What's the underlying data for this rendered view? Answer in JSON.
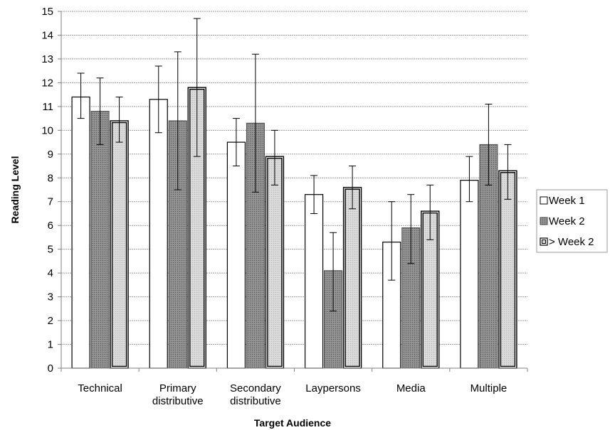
{
  "chart_data": {
    "type": "bar",
    "title": "",
    "xlabel": "Target Audience",
    "ylabel": "Reading Level",
    "ylim": [
      0,
      15
    ],
    "yticks": [
      0,
      1,
      2,
      3,
      4,
      5,
      6,
      7,
      8,
      9,
      10,
      11,
      12,
      13,
      14,
      15
    ],
    "grid": "horizontal dashed",
    "legend_position": "right",
    "categories": [
      [
        "Technical"
      ],
      [
        "Primary",
        "distributive"
      ],
      [
        "Secondary",
        "distributive"
      ],
      [
        "Laypersons"
      ],
      [
        "Media"
      ],
      [
        "Multiple"
      ]
    ],
    "series": [
      {
        "name": "Week 1",
        "fill": "#ffffff",
        "style": "plain",
        "values": [
          11.4,
          11.3,
          9.5,
          7.3,
          5.3,
          7.9
        ],
        "err_low": [
          10.5,
          9.9,
          8.5,
          6.5,
          3.7,
          7.0
        ],
        "err_high": [
          12.4,
          12.7,
          10.5,
          8.1,
          7.0,
          8.9
        ]
      },
      {
        "name": "Week 2",
        "fill": "#8c8c8c",
        "style": "dotted",
        "values": [
          10.8,
          10.4,
          10.3,
          4.1,
          5.9,
          9.4
        ],
        "err_low": [
          9.4,
          7.5,
          7.4,
          2.4,
          4.4,
          7.7
        ],
        "err_high": [
          12.2,
          13.3,
          13.2,
          5.7,
          7.3,
          11.1
        ]
      },
      {
        "name": "> Week 2",
        "fill": "#d4d4d4",
        "style": "double-border",
        "values": [
          10.4,
          11.8,
          8.9,
          7.6,
          6.6,
          8.3
        ],
        "err_low": [
          9.5,
          8.9,
          7.7,
          6.7,
          5.4,
          7.1
        ],
        "err_high": [
          11.4,
          14.7,
          10.0,
          8.5,
          7.7,
          9.4
        ]
      }
    ]
  }
}
